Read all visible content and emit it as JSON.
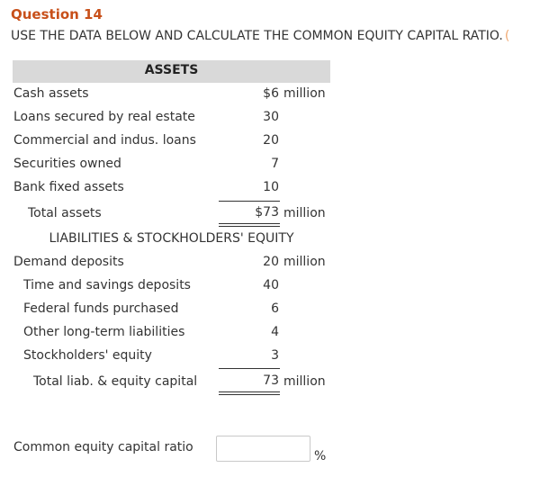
{
  "question": {
    "title": "Question 14",
    "instruction": "USE THE DATA BELOW AND CALCULATE THE COMMON EQUITY CAPITAL RATIO.",
    "instruction_tail": "("
  },
  "assets": {
    "heading": "ASSETS",
    "rows": [
      {
        "label": "Cash assets",
        "value": "$6",
        "unit": "million"
      },
      {
        "label": "Loans secured by real estate",
        "value": "30"
      },
      {
        "label": "Commercial and indus. loans",
        "value": "20"
      },
      {
        "label": "Securities owned",
        "value": "7"
      },
      {
        "label": "Bank fixed assets",
        "value": "10"
      }
    ],
    "total": {
      "label": "Total assets",
      "value": "$73",
      "unit": "million"
    }
  },
  "liabilities": {
    "heading": "LIABILITIES & STOCKHOLDERS' EQUITY",
    "rows": [
      {
        "label": "Demand deposits",
        "value": "20",
        "unit": "million"
      },
      {
        "label": "Time and savings deposits",
        "value": "40"
      },
      {
        "label": "Federal funds purchased",
        "value": "6"
      },
      {
        "label": "Other long-term liabilities",
        "value": "4"
      },
      {
        "label": "Stockholders' equity",
        "value": "3"
      }
    ],
    "total": {
      "label": "Total liab. & equity capital",
      "value": "73",
      "unit": "million"
    }
  },
  "answer": {
    "label": "Common equity capital ratio",
    "value": "",
    "placeholder": "",
    "unit": "%"
  }
}
